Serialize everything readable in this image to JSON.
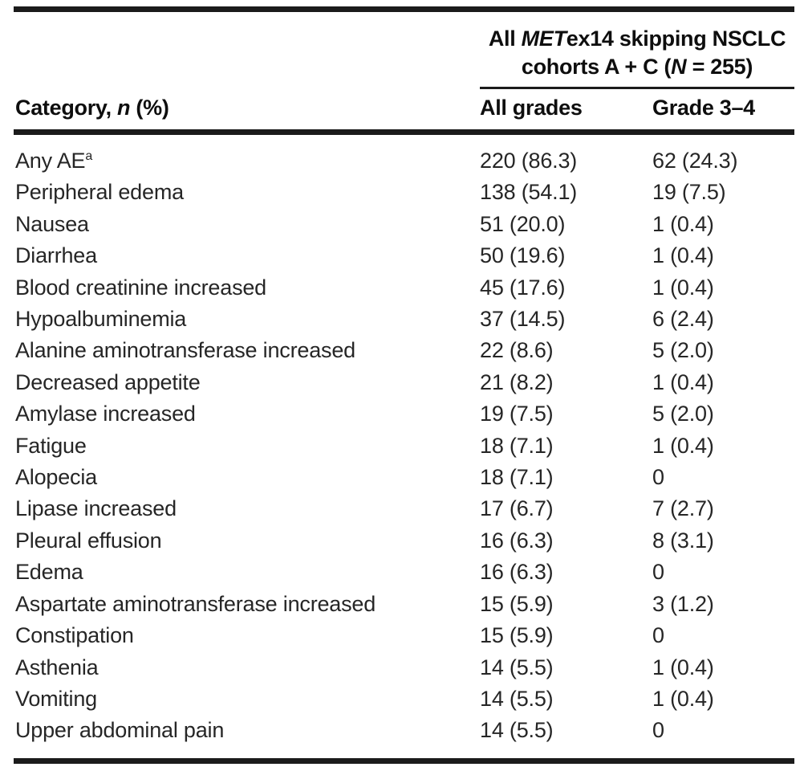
{
  "page": {
    "background_color": "#ffffff",
    "rule_color": "#1b1b1b",
    "header_text_color": "#0e0e0e",
    "body_text_color": "#262626"
  },
  "table": {
    "span_header": {
      "line1_pre": "All ",
      "line1_italic": "MET",
      "line1_post": "ex14 skipping NSCLC",
      "line2_pre": "cohorts A + C (",
      "line2_italic": "N",
      "line2_post": " = 255)"
    },
    "columns": {
      "category_pre": "Category, ",
      "category_italic": "n",
      "category_post": " (%)",
      "all_grades": "All grades",
      "grade_3_4": "Grade 3–4"
    },
    "rows": [
      {
        "category": "Any AE",
        "footnote": "a",
        "all_grades": "220 (86.3)",
        "grade_3_4": "62 (24.3)"
      },
      {
        "category": "Peripheral edema",
        "all_grades": "138 (54.1)",
        "grade_3_4": "19 (7.5)"
      },
      {
        "category": "Nausea",
        "all_grades": "51 (20.0)",
        "grade_3_4": "1 (0.4)"
      },
      {
        "category": "Diarrhea",
        "all_grades": "50 (19.6)",
        "grade_3_4": "1 (0.4)"
      },
      {
        "category": "Blood creatinine increased",
        "all_grades": "45 (17.6)",
        "grade_3_4": "1 (0.4)"
      },
      {
        "category": "Hypoalbuminemia",
        "all_grades": "37 (14.5)",
        "grade_3_4": "6 (2.4)"
      },
      {
        "category": "Alanine aminotransferase increased",
        "all_grades": "22 (8.6)",
        "grade_3_4": "5 (2.0)"
      },
      {
        "category": "Decreased appetite",
        "all_grades": "21 (8.2)",
        "grade_3_4": "1 (0.4)"
      },
      {
        "category": "Amylase increased",
        "all_grades": "19 (7.5)",
        "grade_3_4": "5 (2.0)"
      },
      {
        "category": "Fatigue",
        "all_grades": "18 (7.1)",
        "grade_3_4": "1 (0.4)"
      },
      {
        "category": "Alopecia",
        "all_grades": "18 (7.1)",
        "grade_3_4": "0"
      },
      {
        "category": "Lipase increased",
        "all_grades": "17 (6.7)",
        "grade_3_4": "7 (2.7)"
      },
      {
        "category": "Pleural effusion",
        "all_grades": "16 (6.3)",
        "grade_3_4": "8 (3.1)"
      },
      {
        "category": "Edema",
        "all_grades": "16 (6.3)",
        "grade_3_4": "0"
      },
      {
        "category": "Aspartate aminotransferase increased",
        "all_grades": "15 (5.9)",
        "grade_3_4": "3 (1.2)"
      },
      {
        "category": "Constipation",
        "all_grades": "15 (5.9)",
        "grade_3_4": "0"
      },
      {
        "category": "Asthenia",
        "all_grades": "14 (5.5)",
        "grade_3_4": "1 (0.4)"
      },
      {
        "category": "Vomiting",
        "all_grades": "14 (5.5)",
        "grade_3_4": "1 (0.4)"
      },
      {
        "category": "Upper abdominal pain",
        "all_grades": "14 (5.5)",
        "grade_3_4": "0"
      }
    ]
  }
}
